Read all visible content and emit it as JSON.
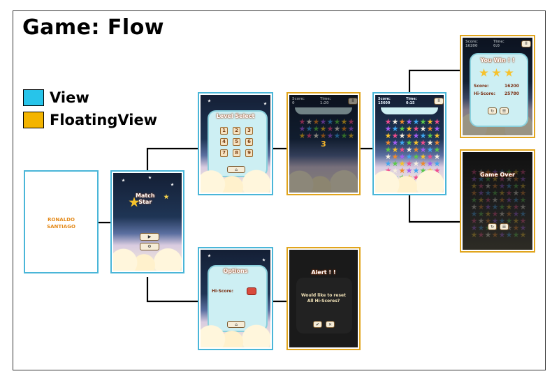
{
  "title": "Game: Flow",
  "legend": {
    "view_label": "View",
    "view_color": "#27c4ea",
    "floating_label": "FloatingView",
    "floating_color": "#f3b400"
  },
  "screens": {
    "splash": {
      "line1": "RONALDO",
      "line2": "SANTIAGO"
    },
    "main_menu": {
      "logo_line1": "Match",
      "logo_line2": "Star",
      "play_icon": "play-icon",
      "settings_icon": "gear-icon"
    },
    "level_select": {
      "title": "Level Select",
      "levels": [
        "1",
        "2",
        "3",
        "4",
        "5",
        "6",
        "7",
        "8",
        "9"
      ],
      "home_icon": "home-icon"
    },
    "countdown": {
      "score_label": "Score:",
      "score_value": "0",
      "time_label": "Time:",
      "time_value": "1:20",
      "count": "3"
    },
    "gameplay": {
      "score_label": "Score:",
      "score_value": "15600",
      "time_label": "Time:",
      "time_value": "0:15"
    },
    "you_win": {
      "score_label": "Score:",
      "score_value": "16200",
      "time_label": "Time:",
      "time_value": "0:0",
      "title": "You Win ! !",
      "score_row_label": "Score:",
      "score_row_value": "16200",
      "hiscore_row_label": "Hi-Score:",
      "hiscore_row_value": "25780"
    },
    "game_over": {
      "title": "Game Over"
    },
    "options": {
      "title": "Options",
      "hiscore_label": "Hi-Score:",
      "home_icon": "home-icon"
    },
    "alert": {
      "title": "Alert ! !",
      "message_line1": "Would like to reset",
      "message_line2": "All Hi-Scores?",
      "confirm_icon": "check-icon",
      "cancel_icon": "close-icon"
    }
  }
}
